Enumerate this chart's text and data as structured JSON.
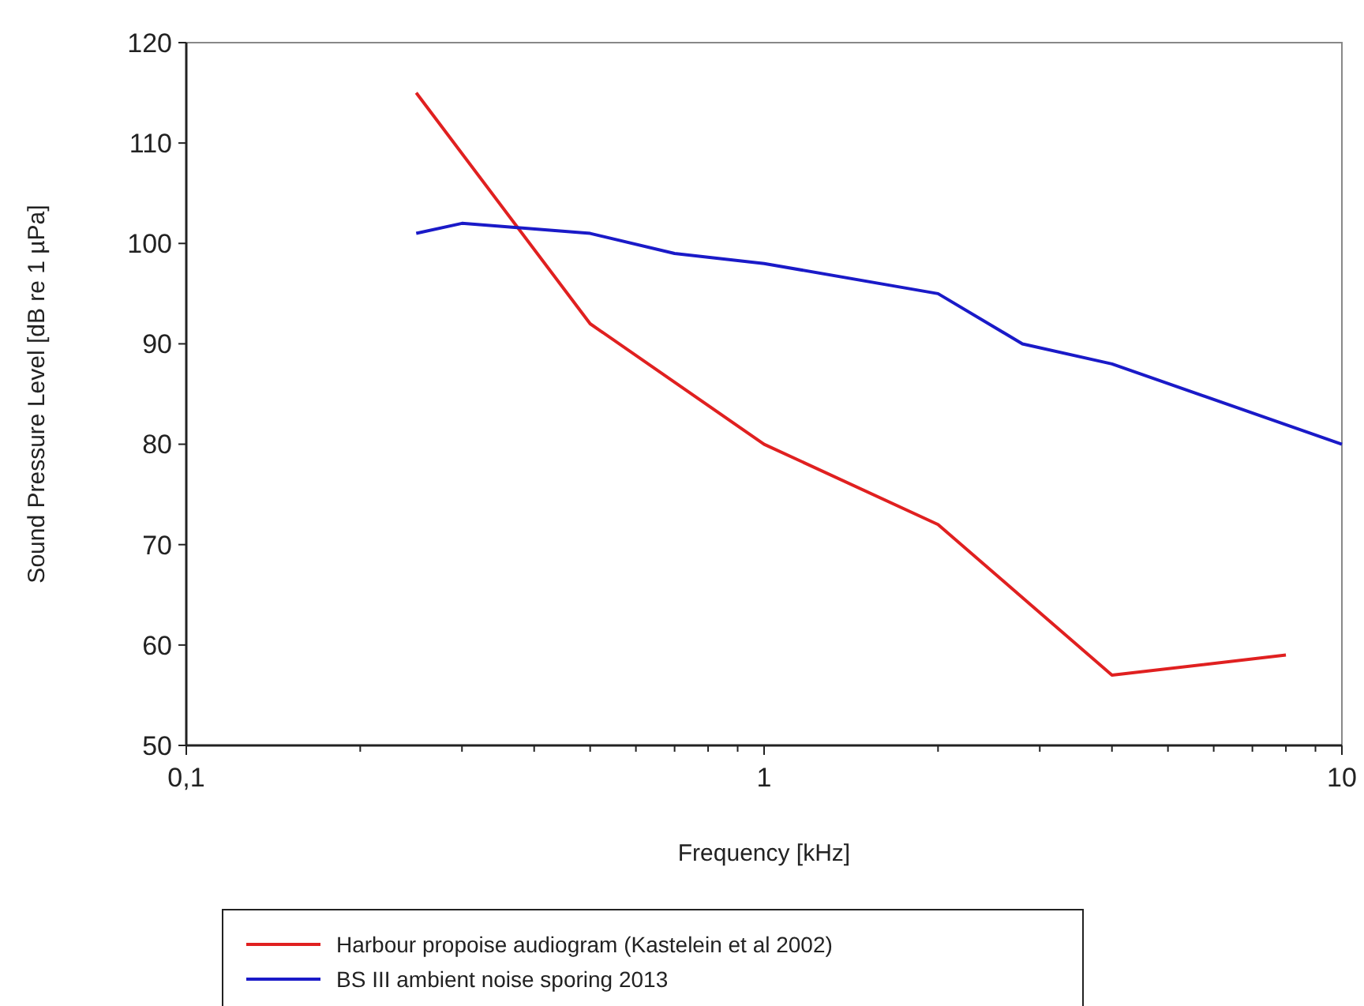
{
  "chart_data": {
    "type": "line",
    "xlabel": "Frequency [kHz]",
    "ylabel": "Sound Pressure Level [dB re 1 µPa]",
    "log": "x",
    "xlim": [
      0.1,
      10
    ],
    "xticks": [
      {
        "value": 0.1,
        "label": "0,1"
      },
      {
        "value": 0.2,
        "label": null
      },
      {
        "value": 0.3,
        "label": null
      },
      {
        "value": 0.4,
        "label": null
      },
      {
        "value": 0.5,
        "label": null
      },
      {
        "value": 0.6,
        "label": null
      },
      {
        "value": 0.7,
        "label": null
      },
      {
        "value": 0.8,
        "label": null
      },
      {
        "value": 0.9,
        "label": null
      },
      1,
      {
        "value": 2,
        "label": null
      },
      {
        "value": 3,
        "label": null
      },
      {
        "value": 4,
        "label": null
      },
      {
        "value": 5,
        "label": null
      },
      {
        "value": 6,
        "label": null
      },
      {
        "value": 7,
        "label": null
      },
      {
        "value": 8,
        "label": null
      },
      {
        "value": 9,
        "label": null
      },
      10
    ],
    "ylim": [
      50,
      120
    ],
    "yticks": [
      50,
      60,
      70,
      80,
      90,
      100,
      110,
      120
    ],
    "grid": false,
    "legend": "bottom",
    "marker": "none",
    "line_style": "solid",
    "series": [
      {
        "name": "Harbour propoise audiogram (Kastelein et al 2002)",
        "color": "#e02020",
        "x": [
          0.25,
          0.5,
          1,
          2,
          4,
          8
        ],
        "values": [
          115,
          92,
          80,
          72,
          57,
          59
        ]
      },
      {
        "name": "BS III ambient noise sporing 2013",
        "color": "#1a1ac8",
        "x": [
          0.25,
          0.3,
          0.5,
          0.7,
          1,
          2,
          2.8,
          4,
          10
        ],
        "values": [
          101,
          102,
          101,
          99,
          98,
          95,
          90,
          88,
          80
        ]
      }
    ]
  }
}
